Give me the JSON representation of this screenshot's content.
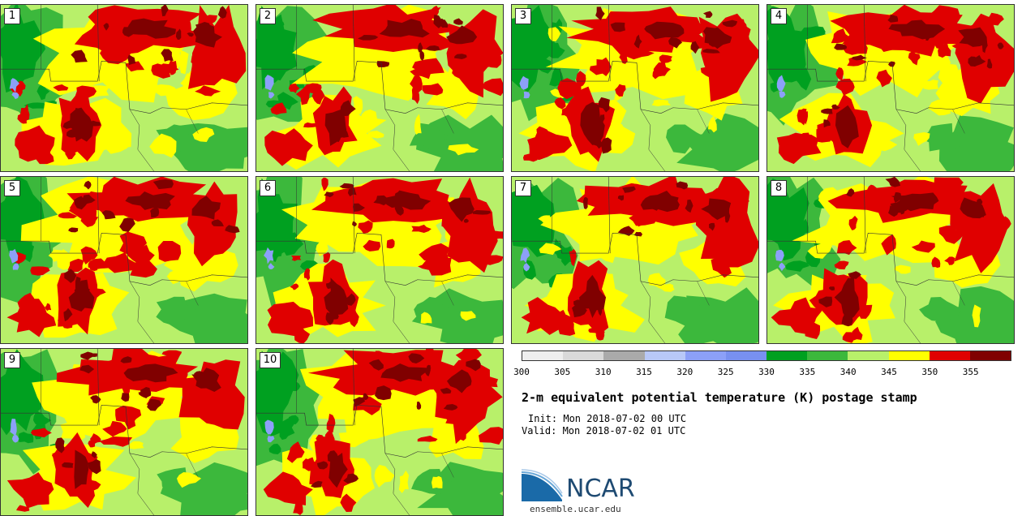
{
  "members": [
    "1",
    "2",
    "3",
    "4",
    "5",
    "6",
    "7",
    "8",
    "9",
    "10"
  ],
  "legend": {
    "colors": [
      "#eeeeee",
      "#d9d9d9",
      "#aaaaaa",
      "#b8c8f8",
      "#8ca0f8",
      "#7890f0",
      "#00a020",
      "#3cb83c",
      "#b8f06a",
      "#ffff00",
      "#e00000",
      "#800000"
    ],
    "ticks": [
      "300",
      "305",
      "310",
      "315",
      "320",
      "325",
      "330",
      "335",
      "340",
      "345",
      "350",
      "355"
    ]
  },
  "title": "2-m equivalent potential temperature (K) postage stamp",
  "init": "Init: Mon 2018-07-02 00 UTC",
  "valid": "Valid: Mon 2018-07-02 01 UTC",
  "logo": {
    "name": "NCAR",
    "url": "ensemble.ucar.edu",
    "accent": "#1a6aa8"
  }
}
